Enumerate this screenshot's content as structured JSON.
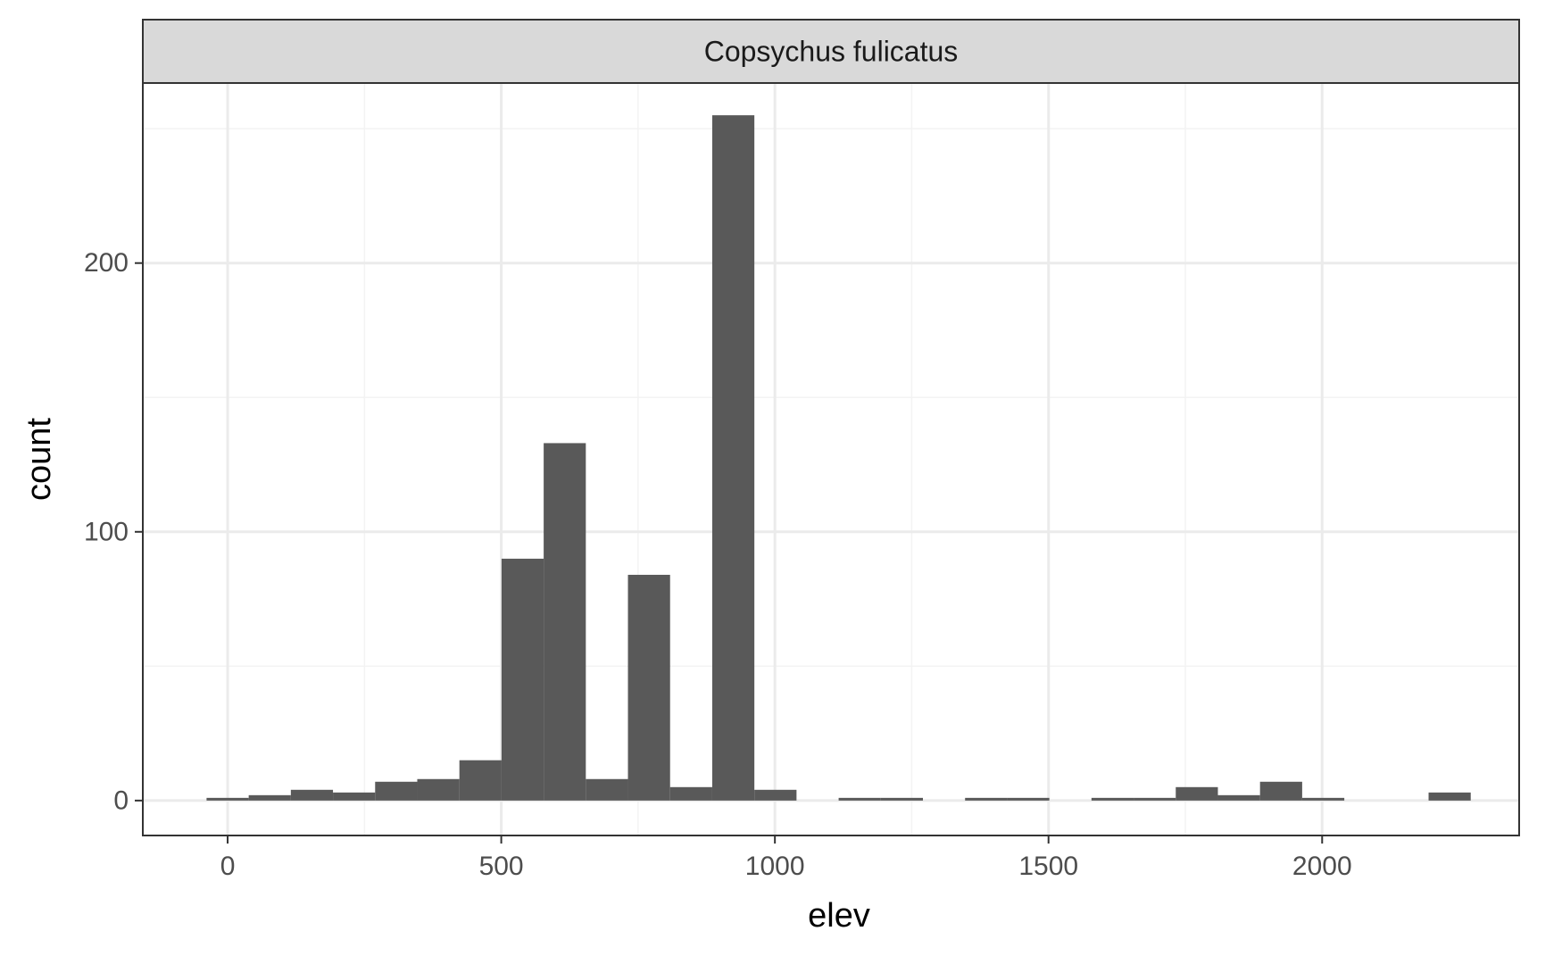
{
  "chart_data": {
    "type": "bar",
    "subtype": "histogram",
    "facet_label": "Copsychus fulicatus",
    "xlabel": "elev",
    "ylabel": "count",
    "xlim": [
      -155,
      2360
    ],
    "ylim": [
      -13,
      267
    ],
    "x_ticks": [
      0,
      500,
      1000,
      1500,
      2000
    ],
    "x_tick_labels": [
      "0",
      "500",
      "1000",
      "1500",
      "2000"
    ],
    "y_ticks": [
      0,
      100,
      200
    ],
    "y_tick_labels": [
      "0",
      "100",
      "200"
    ],
    "x_minor_breaks": [
      250,
      750,
      1250,
      1750
    ],
    "y_minor_breaks": [
      50,
      150,
      250
    ],
    "bin_width": 77,
    "bins": [
      {
        "x": 0,
        "count": 1
      },
      {
        "x": 77,
        "count": 2
      },
      {
        "x": 154,
        "count": 4
      },
      {
        "x": 231,
        "count": 3
      },
      {
        "x": 308,
        "count": 7
      },
      {
        "x": 385,
        "count": 8
      },
      {
        "x": 462,
        "count": 15
      },
      {
        "x": 539,
        "count": 90
      },
      {
        "x": 616,
        "count": 133
      },
      {
        "x": 693,
        "count": 8
      },
      {
        "x": 770,
        "count": 84
      },
      {
        "x": 847,
        "count": 5
      },
      {
        "x": 924,
        "count": 255
      },
      {
        "x": 1001,
        "count": 4
      },
      {
        "x": 1078,
        "count": 0
      },
      {
        "x": 1155,
        "count": 1
      },
      {
        "x": 1232,
        "count": 1
      },
      {
        "x": 1309,
        "count": 0
      },
      {
        "x": 1386,
        "count": 1
      },
      {
        "x": 1463,
        "count": 1
      },
      {
        "x": 1540,
        "count": 0
      },
      {
        "x": 1617,
        "count": 1
      },
      {
        "x": 1694,
        "count": 1
      },
      {
        "x": 1771,
        "count": 5
      },
      {
        "x": 1848,
        "count": 2
      },
      {
        "x": 1925,
        "count": 7
      },
      {
        "x": 2002,
        "count": 1
      },
      {
        "x": 2079,
        "count": 0
      },
      {
        "x": 2156,
        "count": 0
      },
      {
        "x": 2233,
        "count": 3
      }
    ],
    "bar_color": "#595959",
    "panel_background": "#ffffff",
    "strip_background": "#d9d9d9",
    "grid_major_color": "#ebebeb",
    "grid_minor_color": "#f3f3f3",
    "grid": true,
    "legend": "none"
  }
}
